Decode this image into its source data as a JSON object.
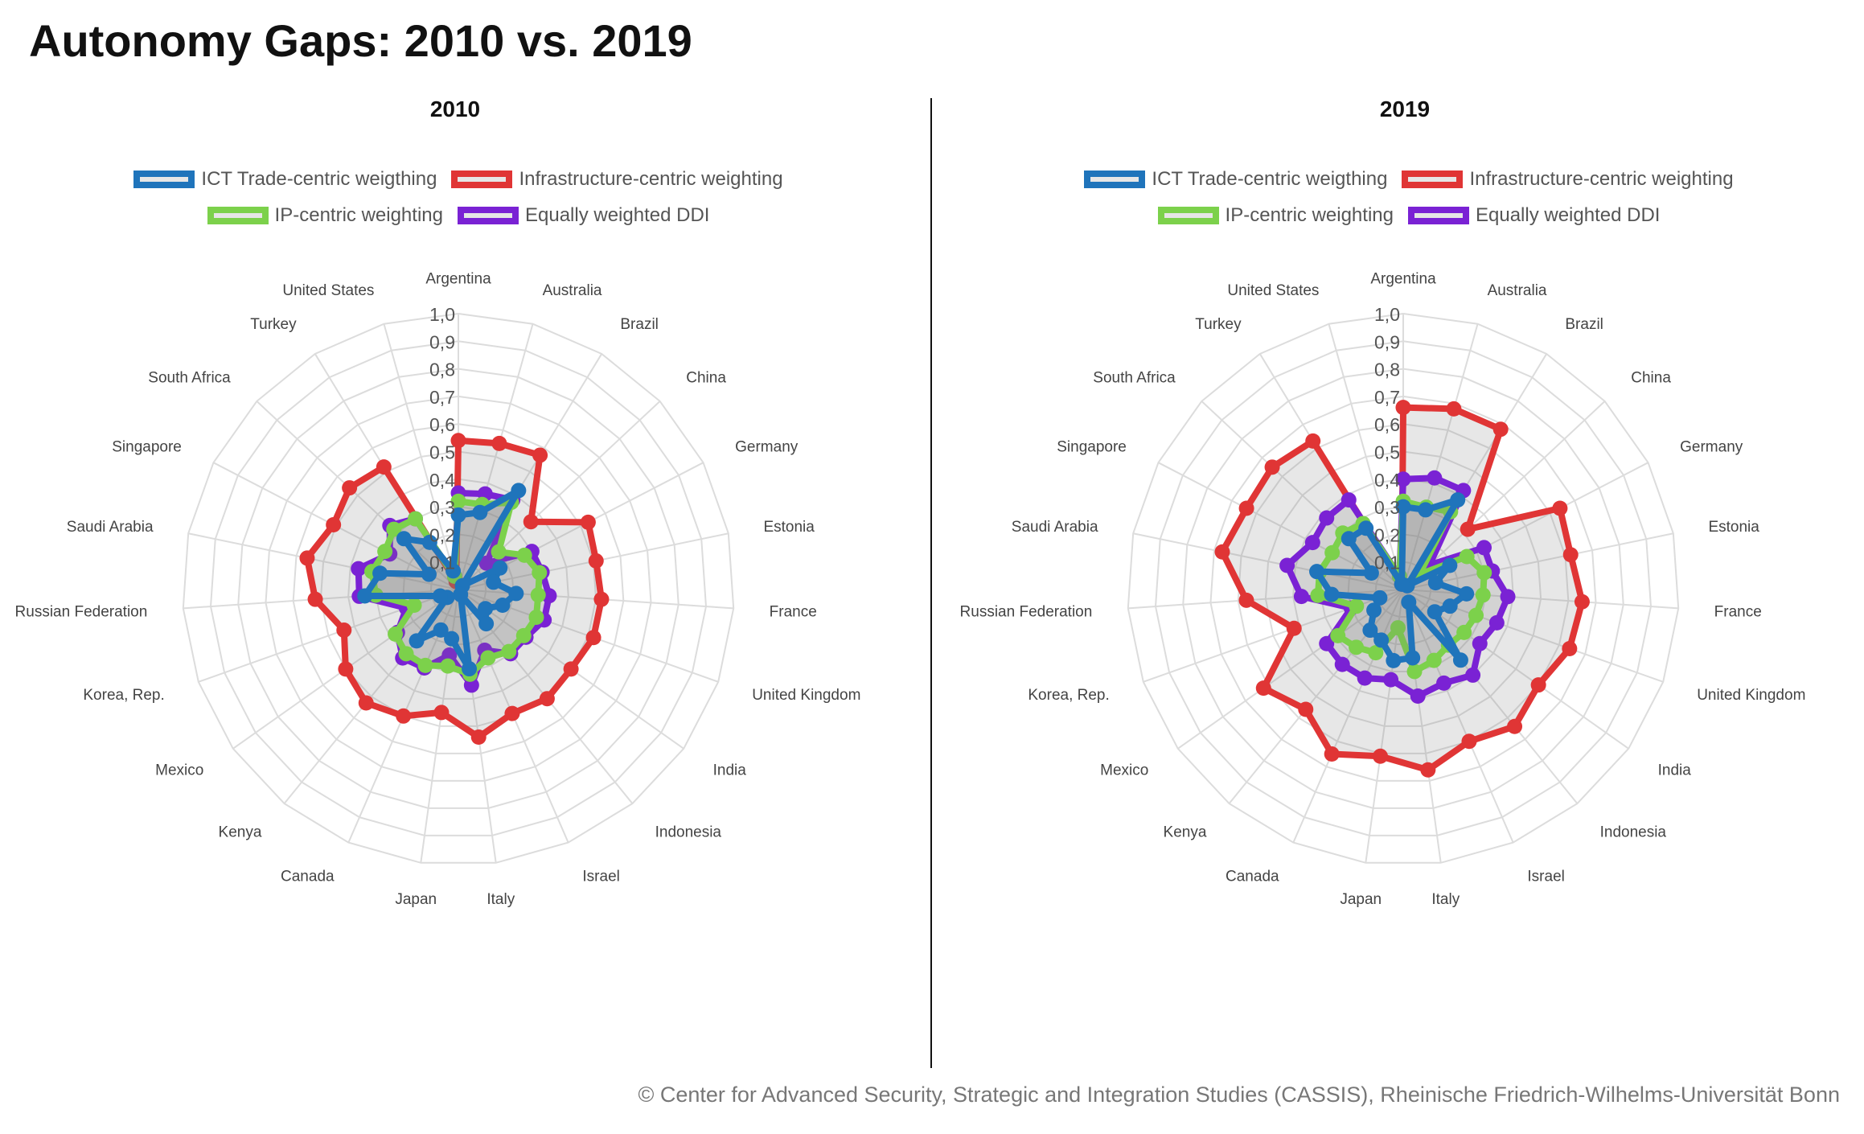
{
  "title": "Autonomy Gaps: 2010 vs. 2019",
  "footer": "© Center for Advanced Security, Strategic and Integration Studies (CASSIS), Rheinische Friedrich-Wilhelms-Universität Bonn",
  "legend": [
    {
      "label": "ICT Trade-centric weigthing",
      "color": "#1f74bb"
    },
    {
      "label": "Infrastructure-centric weighting",
      "color": "#e03535"
    },
    {
      "label": "IP-centric weighting",
      "color": "#7cd14b"
    },
    {
      "label": "Equally weighted DDI",
      "color": "#7a22d4"
    }
  ],
  "chart_data": [
    {
      "type": "radar",
      "title": "2010",
      "rlim": [
        0,
        1
      ],
      "tick_labels": [
        "0,1",
        "0,2",
        "0,3",
        "0,4",
        "0,5",
        "0,6",
        "0,7",
        "0,8",
        "0,9",
        "1,0"
      ],
      "categories": [
        "Argentina",
        "Australia",
        "Brazil",
        "China",
        "Germany",
        "Estonia",
        "France",
        "United Kingdom",
        "India",
        "Indonesia",
        "Israel",
        "Italy",
        "Japan",
        "Canada",
        "Kenya",
        "Mexico",
        "Korea, Rep.",
        "Russian Federation",
        "Saudi Arabia",
        "Singapore",
        "South Africa",
        "Turkey",
        "United States"
      ],
      "series": [
        {
          "name": "Infrastructure-centric weighting",
          "color": "#e03535",
          "values": [
            0.54,
            0.55,
            0.57,
            0.36,
            0.53,
            0.51,
            0.52,
            0.52,
            0.5,
            0.51,
            0.49,
            0.54,
            0.45,
            0.5,
            0.53,
            0.5,
            0.44,
            0.52,
            0.56,
            0.51,
            0.54,
            0.52,
            0.03
          ]
        },
        {
          "name": "Equally weighted DDI",
          "color": "#7a22d4",
          "values": [
            0.35,
            0.36,
            0.38,
            0.14,
            0.3,
            0.31,
            0.33,
            0.33,
            0.3,
            0.3,
            0.24,
            0.35,
            0.24,
            0.31,
            0.32,
            0.27,
            0.2,
            0.36,
            0.37,
            0.28,
            0.34,
            0.3,
            0.05
          ]
        },
        {
          "name": "IP-centric weighting",
          "color": "#7cd14b",
          "values": [
            0.32,
            0.32,
            0.37,
            0.2,
            0.27,
            0.3,
            0.29,
            0.3,
            0.29,
            0.29,
            0.27,
            0.31,
            0.28,
            0.3,
            0.3,
            0.28,
            0.17,
            0.3,
            0.32,
            0.3,
            0.32,
            0.3,
            0.05
          ]
        },
        {
          "name": "ICT Trade-centric weigthing",
          "color": "#1f74bb",
          "values": [
            0.27,
            0.29,
            0.42,
            0.02,
            0.17,
            0.13,
            0.21,
            0.17,
            0.12,
            0.16,
            0.02,
            0.29,
            0.18,
            0.16,
            0.24,
            0.05,
            0.07,
            0.34,
            0.29,
            0.12,
            0.27,
            0.2,
            0.07
          ]
        }
      ]
    },
    {
      "type": "radar",
      "title": "2019",
      "rlim": [
        0,
        1
      ],
      "tick_labels": [
        "0,1",
        "0,2",
        "0,3",
        "0,4",
        "0,5",
        "0,6",
        "0,7",
        "0,8",
        "0,9",
        "1,0"
      ],
      "categories": [
        "Argentina",
        "Australia",
        "Brazil",
        "China",
        "Germany",
        "Estonia",
        "France",
        "United Kingdom",
        "India",
        "Indonesia",
        "Israel",
        "Italy",
        "Japan",
        "Canada",
        "Kenya",
        "Mexico",
        "Korea, Rep.",
        "Russian Federation",
        "Saudi Arabia",
        "Singapore",
        "South Africa",
        "Turkey",
        "United States"
      ],
      "series": [
        {
          "name": "Infrastructure-centric weighting",
          "color": "#e03535",
          "values": [
            0.66,
            0.68,
            0.68,
            0.32,
            0.64,
            0.62,
            0.65,
            0.64,
            0.6,
            0.64,
            0.6,
            0.66,
            0.61,
            0.65,
            0.56,
            0.62,
            0.42,
            0.57,
            0.67,
            0.64,
            0.65,
            0.63,
            0.02
          ]
        },
        {
          "name": "Equally weighted DDI",
          "color": "#7a22d4",
          "values": [
            0.4,
            0.42,
            0.42,
            0.13,
            0.33,
            0.33,
            0.38,
            0.36,
            0.34,
            0.4,
            0.37,
            0.39,
            0.33,
            0.35,
            0.35,
            0.34,
            0.2,
            0.37,
            0.43,
            0.37,
            0.38,
            0.38,
            0.05
          ]
        },
        {
          "name": "IP-centric weighting",
          "color": "#7cd14b",
          "values": [
            0.32,
            0.31,
            0.33,
            0.08,
            0.26,
            0.3,
            0.29,
            0.28,
            0.27,
            0.26,
            0.28,
            0.3,
            0.14,
            0.25,
            0.27,
            0.29,
            0.18,
            0.31,
            0.31,
            0.29,
            0.3,
            0.28,
            0.05
          ]
        },
        {
          "name": "ICT Trade-centric weigthing",
          "color": "#1f74bb",
          "values": [
            0.3,
            0.3,
            0.38,
            0.02,
            0.19,
            0.12,
            0.23,
            0.18,
            0.14,
            0.33,
            0.05,
            0.25,
            0.26,
            0.2,
            0.19,
            0.13,
            0.09,
            0.26,
            0.32,
            0.13,
            0.27,
            0.26,
            0.02
          ]
        }
      ]
    }
  ]
}
